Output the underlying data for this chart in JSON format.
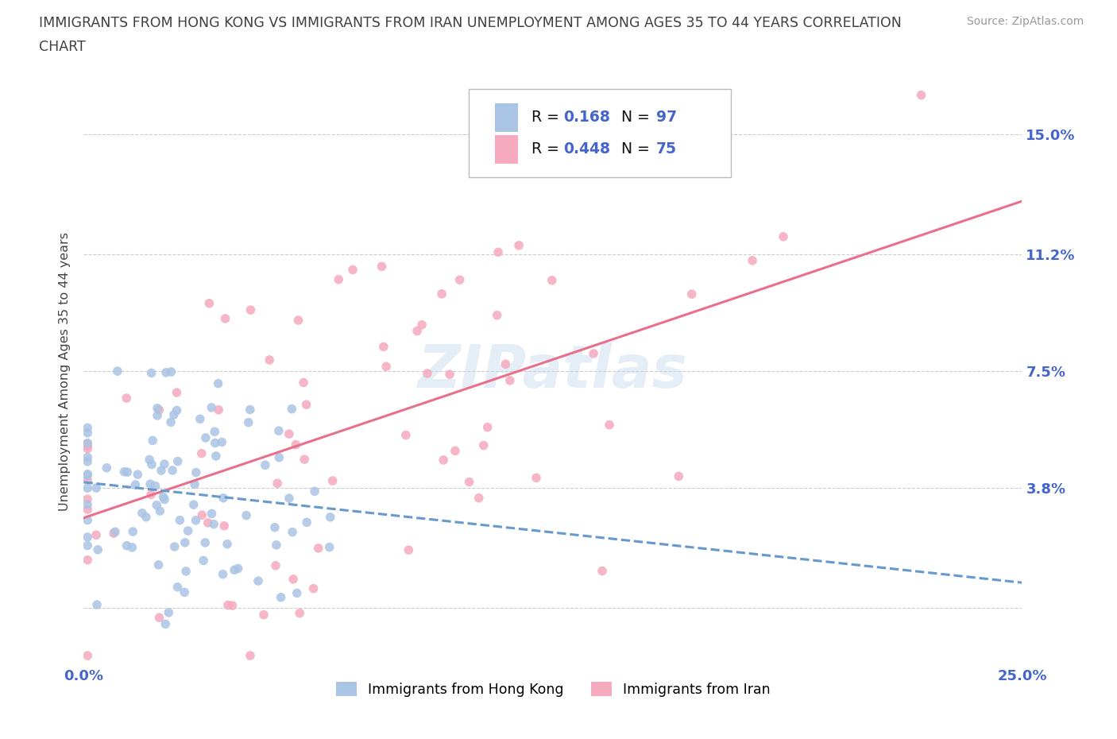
{
  "title_line1": "IMMIGRANTS FROM HONG KONG VS IMMIGRANTS FROM IRAN UNEMPLOYMENT AMONG AGES 35 TO 44 YEARS CORRELATION",
  "title_line2": "CHART",
  "source": "Source: ZipAtlas.com",
  "ylabel": "Unemployment Among Ages 35 to 44 years",
  "xmin": 0.0,
  "xmax": 0.25,
  "ymin": -0.018,
  "ymax": 0.168,
  "ytick_vals": [
    0.0,
    0.038,
    0.075,
    0.112,
    0.15
  ],
  "ytick_labels": [
    "",
    "3.8%",
    "7.5%",
    "11.2%",
    "15.0%"
  ],
  "xtick_vals": [
    0.0,
    0.05,
    0.1,
    0.15,
    0.2,
    0.25
  ],
  "xtick_labels": [
    "0.0%",
    "",
    "",
    "",
    "",
    "25.0%"
  ],
  "hk_R": 0.168,
  "hk_N": 97,
  "iran_R": 0.448,
  "iran_N": 75,
  "hk_scatter_color": "#aac4e4",
  "iran_scatter_color": "#f5aabf",
  "hk_line_color": "#6699cc",
  "iran_line_color": "#e8708a",
  "legend_label_hk": "Immigrants from Hong Kong",
  "legend_label_iran": "Immigrants from Iran",
  "bg_color": "#ffffff",
  "grid_color": "#cccccc",
  "title_color": "#404040",
  "tick_color": "#4466cc",
  "watermark": "ZIPatlas",
  "source_color": "#999999",
  "legend_R_color": "#000000",
  "legend_N_color": "#4466cc"
}
